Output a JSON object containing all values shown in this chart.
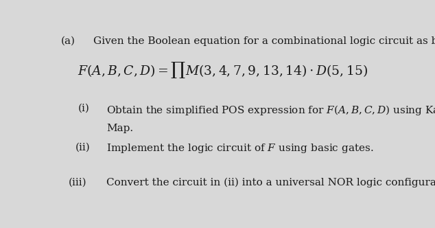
{
  "bg_color": "#d8d8d8",
  "text_color": "#1a1a1a",
  "part_label": "(a)",
  "part_text": "Given the Boolean equation for a combinational logic circuit as below:",
  "equation": "$F(A, B, C, D) = \\prod M(3,4,7,9,13,14) \\cdot D(5,15)$",
  "sub_i_label": "(i)",
  "sub_i_line1": "Obtain the simplified POS expression for $\\mathit{F(A,B,C,D)}$ using Karnaugh",
  "sub_i_line2": "Map.",
  "sub_ii_label": "(ii)",
  "sub_ii_text": "Implement the logic circuit of $\\mathit{F}$ using basic gates.",
  "sub_iii_label": "(iii)",
  "sub_iii_text": "Convert the circuit in (ii) into a universal NOR logic configuration.",
  "font_size_main": 11,
  "font_size_equation": 13.5
}
